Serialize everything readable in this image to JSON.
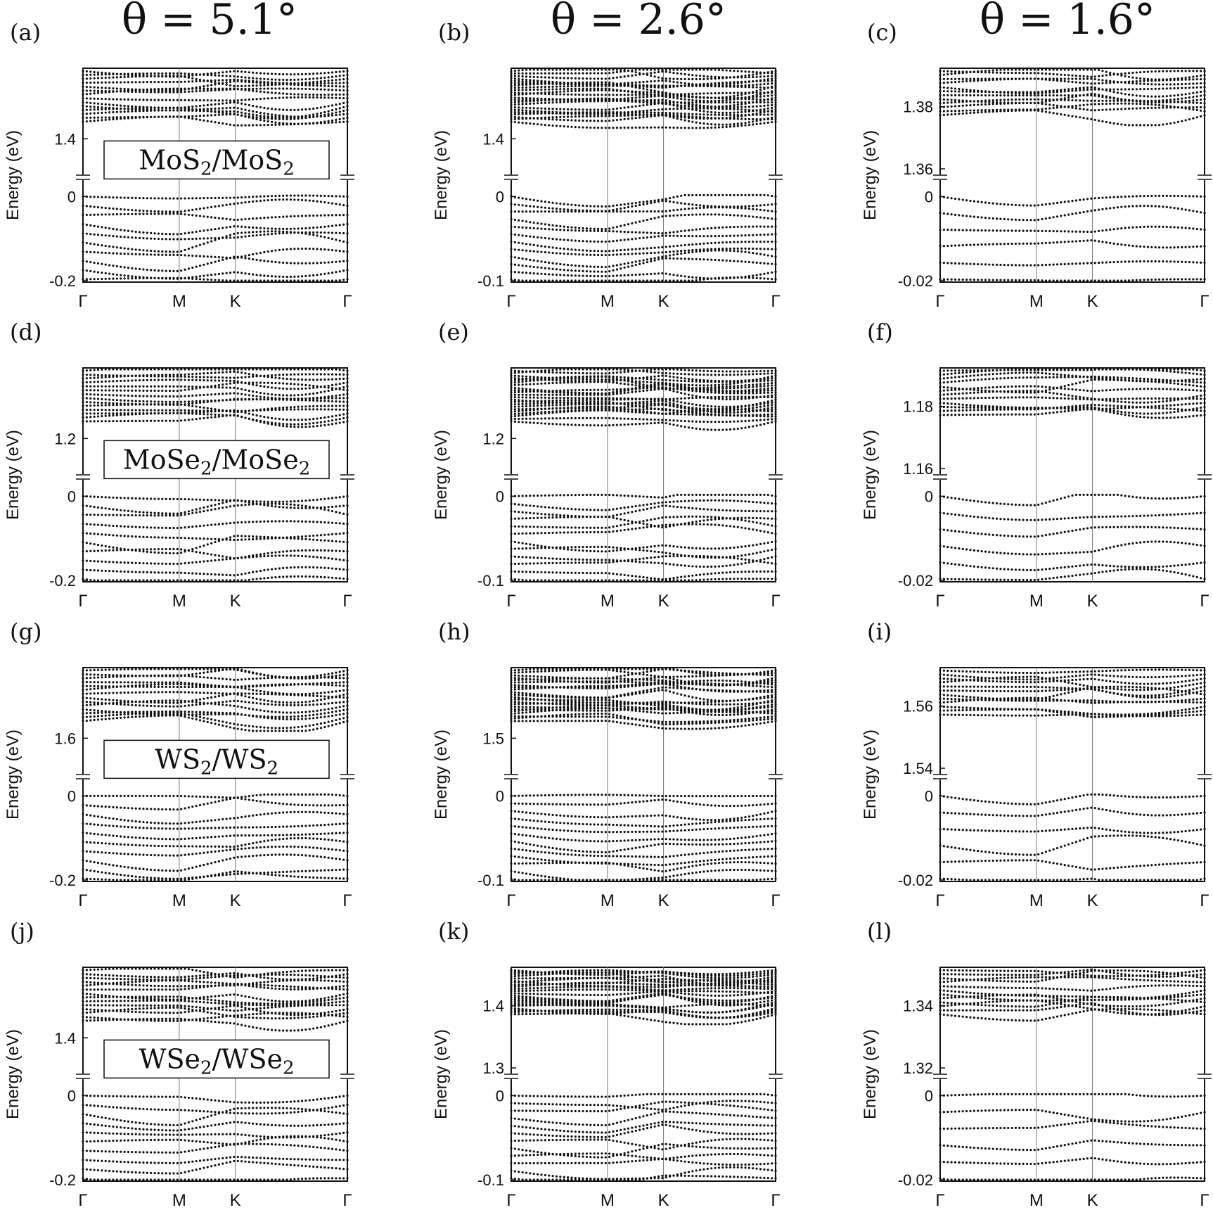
{
  "column_titles": [
    "θ = 5.1°",
    "θ = 2.6°",
    "θ = 1.6°"
  ],
  "y_axis_label": "Energy (eV)",
  "k_labels": [
    "Γ",
    "M",
    "K",
    "Γ"
  ],
  "chart_data": [
    {
      "panel": "(a)",
      "type": "scatter",
      "material": {
        "base": "MoS",
        "sub": "2"
      },
      "conduction_ticks": [
        "1.4"
      ],
      "valence_ticks": [
        "0",
        "-0.2"
      ],
      "conduction_ylim": [
        1.38,
        1.47
      ],
      "valence_ylim": [
        -0.2,
        0.0
      ]
    },
    {
      "panel": "(b)",
      "type": "scatter",
      "conduction_ticks": [
        "1.4"
      ],
      "valence_ticks": [
        "0",
        "-0.1"
      ],
      "conduction_ylim": [
        1.39,
        1.42
      ],
      "valence_ylim": [
        -0.1,
        0.0
      ]
    },
    {
      "panel": "(c)",
      "type": "scatter",
      "conduction_ticks": [
        "1.38",
        "1.36"
      ],
      "valence_ticks": [
        "0",
        "-0.02"
      ],
      "conduction_ylim": [
        1.36,
        1.395
      ],
      "valence_ylim": [
        -0.025,
        0.0
      ]
    },
    {
      "panel": "(d)",
      "type": "scatter",
      "material": {
        "base": "MoSe",
        "sub": "2"
      },
      "conduction_ticks": [
        "1.2"
      ],
      "valence_ticks": [
        "0",
        "-0.2"
      ],
      "conduction_ylim": [
        1.18,
        1.26
      ],
      "valence_ylim": [
        -0.2,
        0.0
      ]
    },
    {
      "panel": "(e)",
      "type": "scatter",
      "conduction_ticks": [
        "1.2"
      ],
      "valence_ticks": [
        "0",
        "-0.1"
      ],
      "conduction_ylim": [
        1.18,
        1.23
      ],
      "valence_ylim": [
        -0.1,
        0.0
      ]
    },
    {
      "panel": "(f)",
      "type": "scatter",
      "conduction_ticks": [
        "1.18",
        "1.16"
      ],
      "valence_ticks": [
        "0",
        "-0.02"
      ],
      "conduction_ylim": [
        1.155,
        1.18
      ],
      "valence_ylim": [
        -0.025,
        0.0
      ]
    },
    {
      "panel": "(g)",
      "type": "scatter",
      "material": {
        "base": "WS",
        "sub": "2"
      },
      "conduction_ticks": [
        "1.6"
      ],
      "valence_ticks": [
        "0",
        "-0.2"
      ],
      "conduction_ylim": [
        1.55,
        1.66
      ],
      "valence_ylim": [
        -0.2,
        0.0
      ]
    },
    {
      "panel": "(h)",
      "type": "scatter",
      "conduction_ticks": [
        "1.5"
      ],
      "valence_ticks": [
        "0",
        "-0.1"
      ],
      "conduction_ylim": [
        1.48,
        1.56
      ],
      "valence_ylim": [
        -0.1,
        0.0
      ]
    },
    {
      "panel": "(i)",
      "type": "scatter",
      "conduction_ticks": [
        "1.56",
        "1.54"
      ],
      "valence_ticks": [
        "0",
        "-0.02"
      ],
      "conduction_ylim": [
        1.535,
        1.56
      ],
      "valence_ylim": [
        -0.025,
        0.0
      ]
    },
    {
      "panel": "(j)",
      "type": "scatter",
      "material": {
        "base": "WSe",
        "sub": "2"
      },
      "conduction_ticks": [
        "1.4"
      ],
      "valence_ticks": [
        "0",
        "-0.2"
      ],
      "conduction_ylim": [
        1.35,
        1.45
      ],
      "valence_ylim": [
        -0.2,
        0.0
      ]
    },
    {
      "panel": "(k)",
      "type": "scatter",
      "conduction_ticks": [
        "1.4",
        "1.3"
      ],
      "valence_ticks": [
        "0",
        "-0.1"
      ],
      "conduction_ylim": [
        1.29,
        1.405
      ],
      "valence_ylim": [
        -0.1,
        0.0
      ]
    },
    {
      "panel": "(l)",
      "type": "scatter",
      "conduction_ticks": [
        "1.34",
        "1.32"
      ],
      "valence_ticks": [
        "0",
        "-0.02"
      ],
      "conduction_ylim": [
        1.32,
        1.35
      ],
      "valence_ylim": [
        -0.025,
        0.0
      ]
    }
  ]
}
